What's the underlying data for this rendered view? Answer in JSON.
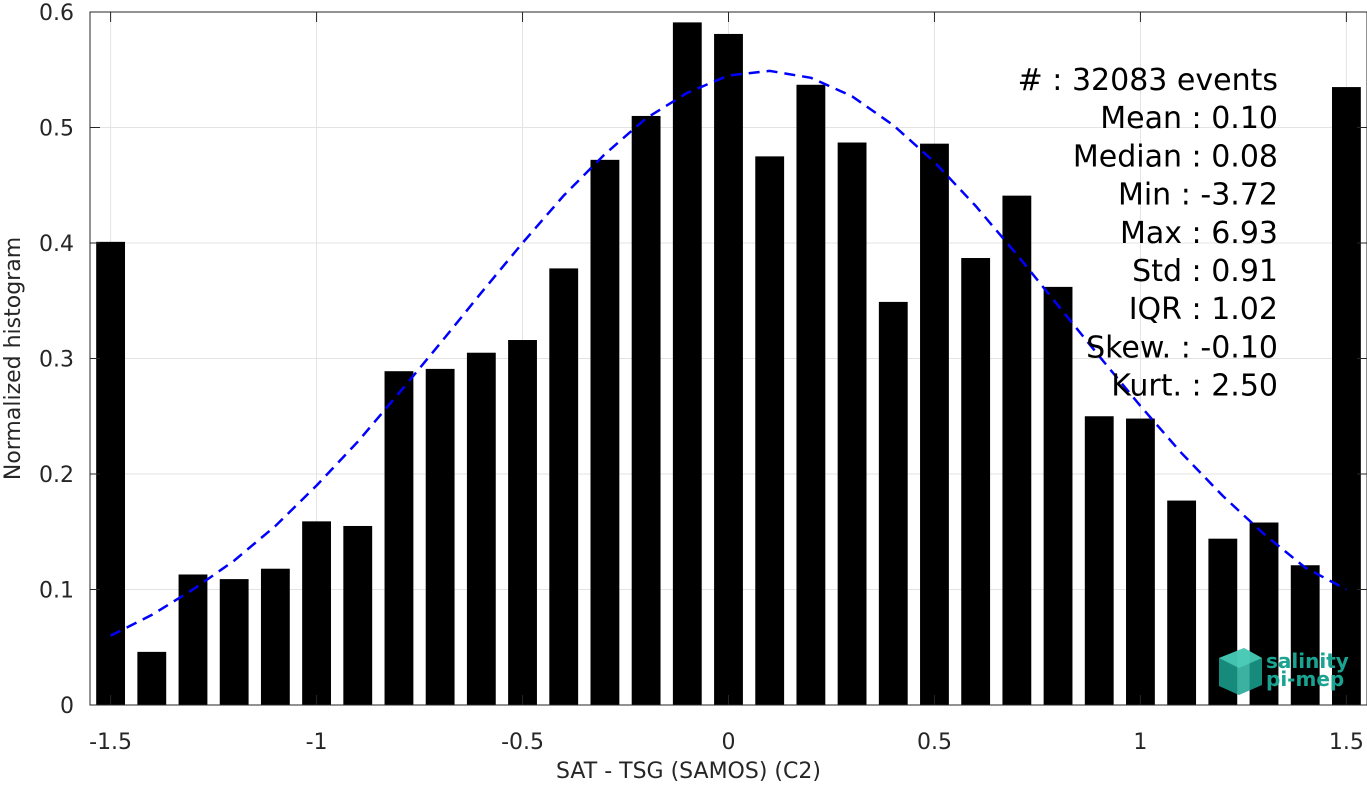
{
  "chart_data": {
    "type": "bar",
    "xlabel": "SAT - TSG (SAMOS) (C2)",
    "ylabel": "Normalized histogram",
    "xlim": [
      -1.55,
      1.55
    ],
    "ylim": [
      0,
      0.6
    ],
    "xticks": [
      -1.5,
      -1,
      -0.5,
      0,
      0.5,
      1,
      1.5
    ],
    "xtick_labels": [
      "-1.5",
      "-1",
      "-0.5",
      "0",
      "0.5",
      "1",
      "1.5"
    ],
    "yticks": [
      0,
      0.1,
      0.2,
      0.3,
      0.4,
      0.5,
      0.6
    ],
    "ytick_labels": [
      "0",
      "0.1",
      "0.2",
      "0.3",
      "0.4",
      "0.5",
      "0.6"
    ],
    "grid": true,
    "bar_width": 0.07,
    "bar_color": "#000000",
    "x": [
      -1.5,
      -1.4,
      -1.3,
      -1.2,
      -1.1,
      -1.0,
      -0.9,
      -0.8,
      -0.7,
      -0.6,
      -0.5,
      -0.4,
      -0.3,
      -0.2,
      -0.1,
      0.0,
      0.1,
      0.2,
      0.3,
      0.4,
      0.5,
      0.6,
      0.7,
      0.8,
      0.9,
      1.0,
      1.1,
      1.2,
      1.3,
      1.4,
      1.5
    ],
    "values": [
      0.401,
      0.046,
      0.113,
      0.109,
      0.118,
      0.159,
      0.155,
      0.289,
      0.291,
      0.305,
      0.316,
      0.378,
      0.472,
      0.51,
      0.591,
      0.581,
      0.475,
      0.537,
      0.487,
      0.349,
      0.486,
      0.387,
      0.441,
      0.362,
      0.25,
      0.248,
      0.177,
      0.144,
      0.158,
      0.121,
      0.535
    ],
    "fit_curve": {
      "style": "dashed",
      "color": "#0000ff",
      "x": [
        -1.5,
        -1.4,
        -1.3,
        -1.2,
        -1.1,
        -1.0,
        -0.9,
        -0.8,
        -0.7,
        -0.6,
        -0.5,
        -0.4,
        -0.3,
        -0.2,
        -0.1,
        0.0,
        0.1,
        0.2,
        0.3,
        0.4,
        0.5,
        0.6,
        0.7,
        0.8,
        0.9,
        1.0,
        1.1,
        1.2,
        1.3,
        1.4,
        1.5
      ],
      "y": [
        0.06,
        0.078,
        0.1,
        0.125,
        0.155,
        0.19,
        0.228,
        0.27,
        0.313,
        0.357,
        0.4,
        0.441,
        0.477,
        0.508,
        0.53,
        0.545,
        0.549,
        0.543,
        0.527,
        0.502,
        0.47,
        0.432,
        0.39,
        0.346,
        0.302,
        0.259,
        0.218,
        0.181,
        0.148,
        0.119,
        0.1
      ]
    },
    "stats": [
      "#  : 32083 events",
      "Mean : 0.10",
      "Median : 0.08",
      "Min : -3.72",
      "Max : 6.93",
      "Std : 0.91",
      "IQR : 1.02",
      "Skew. : -0.10",
      "Kurt. : 2.50"
    ]
  },
  "logo": {
    "name": "salinity-pi-mep-logo",
    "line1": "salinity",
    "line2": "pi-mep",
    "color": "#1aa391"
  }
}
